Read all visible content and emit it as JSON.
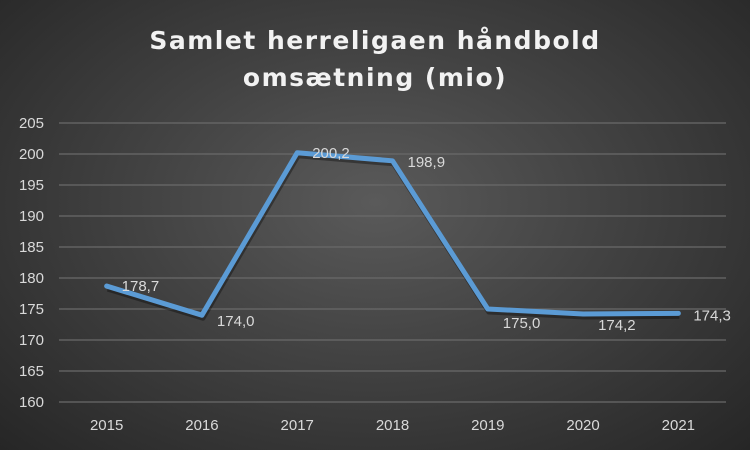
{
  "chart_data": {
    "type": "line",
    "title_lines": [
      "Samlet herreligaen håndbold",
      "omsætning (mio)"
    ],
    "categories": [
      "2015",
      "2016",
      "2017",
      "2018",
      "2019",
      "2020",
      "2021"
    ],
    "values": [
      178.7,
      174.0,
      200.2,
      198.9,
      175.0,
      174.2,
      174.3
    ],
    "data_labels": [
      "178,7",
      "174,0",
      "200,2",
      "198,9",
      "175,0",
      "174,2",
      "174,3"
    ],
    "y_ticks": [
      "160",
      "165",
      "170",
      "175",
      "180",
      "185",
      "190",
      "195",
      "200",
      "205"
    ],
    "ylim": [
      160,
      205
    ],
    "xlabel": "",
    "ylabel": "",
    "grid": true,
    "legend": "none",
    "line_color": "#5b9bd5"
  }
}
